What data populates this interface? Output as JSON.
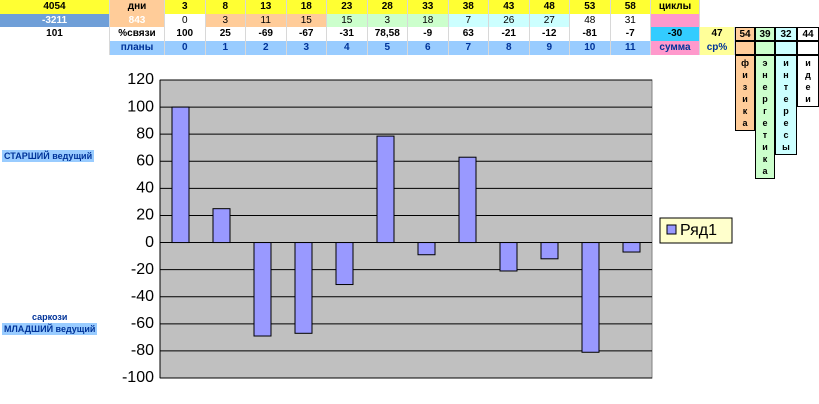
{
  "table": {
    "rows": [
      [
        "4054",
        "дни",
        "3",
        "8",
        "13",
        "18",
        "23",
        "28",
        "33",
        "38",
        "43",
        "48",
        "53",
        "58",
        "циклы"
      ],
      [
        "-3211",
        "843",
        "0",
        "3",
        "11",
        "15",
        "15",
        "3",
        "18",
        "7",
        "26",
        "27",
        "48",
        "31"
      ],
      [
        "101",
        "%связи",
        "100",
        "25",
        "-69",
        "-67",
        "-31",
        "78,58",
        "-9",
        "63",
        "-21",
        "-12",
        "-81",
        "-7",
        "-30",
        "47",
        "54",
        "39",
        "32",
        "44"
      ],
      [
        null,
        "планы",
        "0",
        "1",
        "2",
        "3",
        "4",
        "5",
        "6",
        "7",
        "8",
        "9",
        "10",
        "11",
        "сумма",
        "ср%"
      ]
    ],
    "vertical": [
      "физика",
      "энергетика",
      "интересы",
      "идеи"
    ]
  },
  "side_labels": [
    "СТАРШИЙ ведущий",
    "саркози",
    "МЛАДШИЙ ведущий"
  ],
  "chart_data": {
    "type": "bar",
    "series": [
      {
        "name": "Ряд1",
        "color": "#9999ff",
        "values": [
          100,
          25,
          -69,
          -67,
          -31,
          78.58,
          -9,
          63,
          -21,
          -12,
          -81,
          -7
        ]
      }
    ],
    "ylim": [
      -100,
      120
    ],
    "yticks": [
      -100,
      -80,
      -60,
      -40,
      -20,
      0,
      20,
      40,
      60,
      80,
      100,
      120
    ],
    "grid": true,
    "legend": "right"
  }
}
